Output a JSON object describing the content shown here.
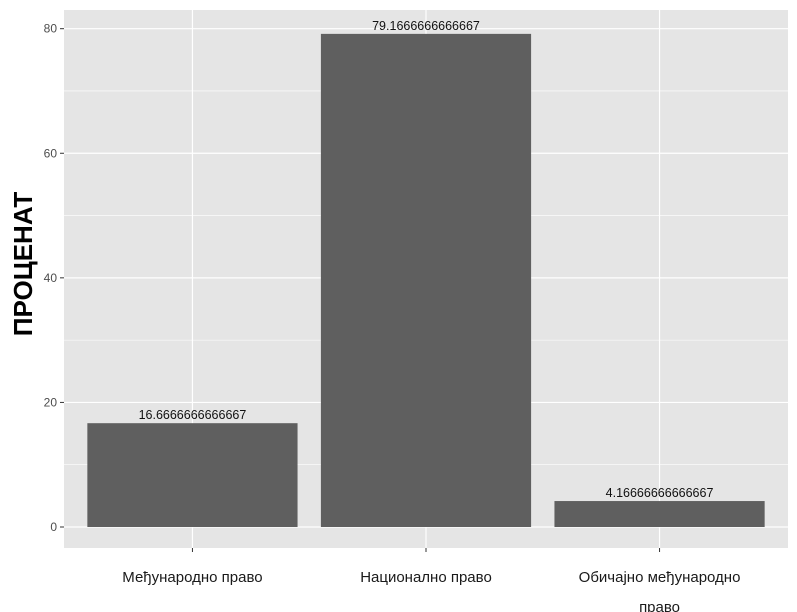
{
  "chart_data": {
    "type": "bar",
    "categories": [
      "Међународно право",
      "Национално право",
      "Обичајно међународно право"
    ],
    "category_label_lines": [
      [
        "Међународно право"
      ],
      [
        "Национално право"
      ],
      [
        "Обичајно међународно",
        "право"
      ]
    ],
    "values": [
      16.6666666666667,
      79.1666666666667,
      4.16666666666667
    ],
    "data_labels": [
      "16.6666666666667",
      "79.1666666666667",
      "4.16666666666667"
    ],
    "title": "",
    "xlabel": "",
    "ylabel": "ПРОЦЕНАТ",
    "ylim": [
      0,
      83
    ],
    "yticks": [
      0,
      20,
      40,
      60,
      80
    ],
    "grid": true,
    "colors": {
      "panel": "#e5e5e5",
      "gridline": "#ffffff",
      "bar": "#5f5f5f",
      "tick_text": "#4d4d4d",
      "axis_title": "#000000"
    }
  }
}
